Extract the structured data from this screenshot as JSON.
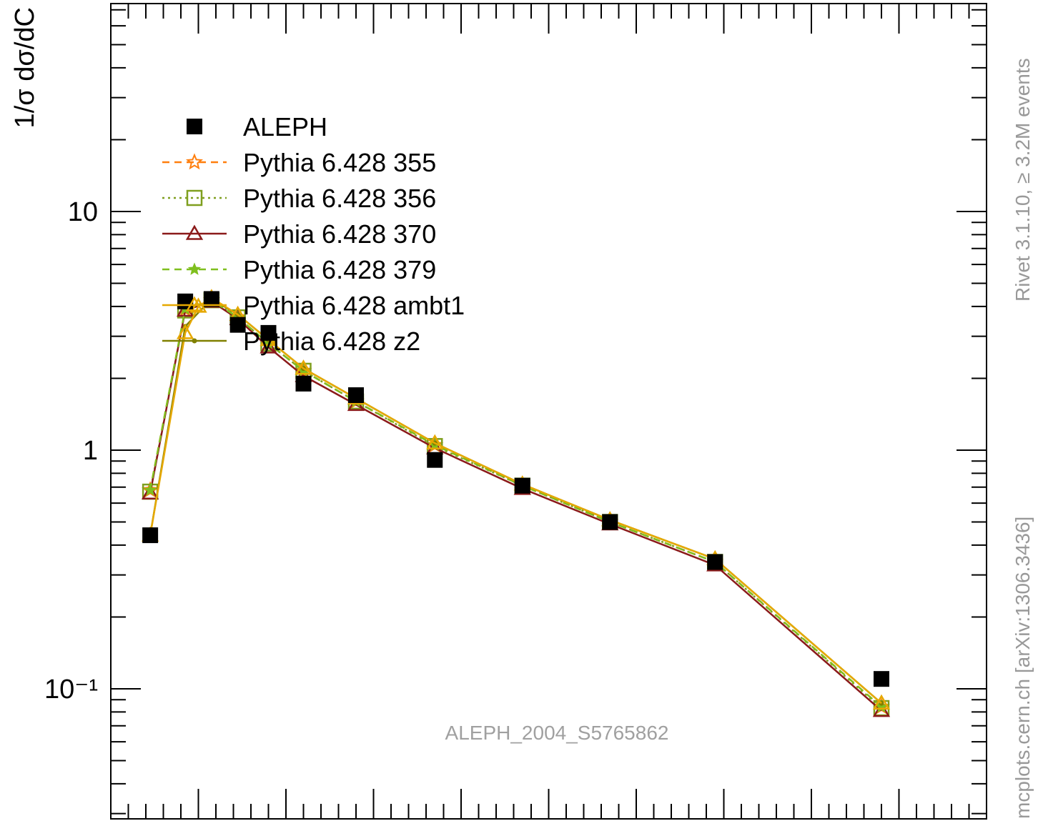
{
  "chart_data": {
    "type": "line",
    "title": "",
    "xlabel": "",
    "ylabel": "1/σ  dσ/dC",
    "yscale": "log",
    "ylim": [
      0.035,
      100
    ],
    "xlim": [
      0,
      1
    ],
    "grid": false,
    "legend_placement": "top-left",
    "ytick_labels": [
      "10⁻¹",
      "1",
      "10"
    ],
    "ytick_values": [
      0.1,
      1,
      10
    ],
    "watermark": "ALEPH_2004_S5765862",
    "side_text_top": "Rivet 3.1.10, ≥ 3.2M events",
    "side_text_bottom": "mcplots.cern.ch [arXiv:1306.3436]",
    "series": [
      {
        "name": "ALEPH",
        "color": "#000000",
        "marker": "square-filled",
        "line": "none",
        "x": [
          0.045,
          0.085,
          0.115,
          0.145,
          0.18,
          0.22,
          0.28,
          0.37,
          0.47,
          0.57,
          0.69,
          0.88
        ],
        "y": [
          0.44,
          4.2,
          4.3,
          3.35,
          3.1,
          1.9,
          1.7,
          0.91,
          0.71,
          0.5,
          0.34,
          0.11
        ]
      },
      {
        "name": "Pythia 6.428 355",
        "color": "#ff7f0e",
        "marker": "star-open",
        "line": "dashed",
        "x": [
          0.045,
          0.085,
          0.115,
          0.145,
          0.18,
          0.22,
          0.28,
          0.37,
          0.47,
          0.57,
          0.69,
          0.88
        ],
        "y": [
          0.68,
          3.9,
          4.25,
          3.6,
          2.8,
          2.15,
          1.6,
          1.05,
          0.71,
          0.5,
          0.34,
          0.084
        ]
      },
      {
        "name": "Pythia 6.428 356",
        "color": "#7f9f1f",
        "marker": "square-open",
        "line": "dotted",
        "x": [
          0.045,
          0.085,
          0.115,
          0.145,
          0.18,
          0.22,
          0.28,
          0.37,
          0.47,
          0.57,
          0.69,
          0.88
        ],
        "y": [
          0.67,
          3.85,
          4.25,
          3.6,
          2.8,
          2.15,
          1.6,
          1.04,
          0.71,
          0.5,
          0.34,
          0.083
        ]
      },
      {
        "name": "Pythia 6.428 370",
        "color": "#8b1a1a",
        "marker": "triangle-open",
        "line": "solid",
        "x": [
          0.045,
          0.085,
          0.115,
          0.145,
          0.18,
          0.22,
          0.28,
          0.37,
          0.47,
          0.57,
          0.69,
          0.88
        ],
        "y": [
          0.66,
          3.85,
          4.2,
          3.55,
          2.7,
          2.05,
          1.55,
          1.02,
          0.69,
          0.49,
          0.33,
          0.081
        ]
      },
      {
        "name": "Pythia 6.428 379",
        "color": "#7fbf1f",
        "marker": "star-small",
        "line": "dashed",
        "x": [
          0.045,
          0.085,
          0.115,
          0.145,
          0.18,
          0.22,
          0.28,
          0.37,
          0.47,
          0.57,
          0.69,
          0.88
        ],
        "y": [
          0.68,
          3.9,
          4.25,
          3.6,
          2.8,
          2.15,
          1.6,
          1.05,
          0.71,
          0.5,
          0.34,
          0.084
        ]
      },
      {
        "name": "Pythia 6.428 ambt1",
        "color": "#e6a800",
        "marker": "triangle-open",
        "line": "solid",
        "x": [
          0.045,
          0.085,
          0.1,
          0.115,
          0.145,
          0.18,
          0.22,
          0.28,
          0.37,
          0.47,
          0.57,
          0.69,
          0.88
        ],
        "y": [
          0.44,
          3.1,
          4.0,
          4.35,
          3.7,
          2.9,
          2.2,
          1.65,
          1.07,
          0.72,
          0.51,
          0.35,
          0.087
        ]
      },
      {
        "name": "Pythia 6.428 z2",
        "color": "#808000",
        "marker": "dot",
        "line": "solid",
        "x": [
          0.045,
          0.085,
          0.115,
          0.145,
          0.18,
          0.22,
          0.28,
          0.37,
          0.47,
          0.57,
          0.69,
          0.88
        ],
        "y": [
          0.44,
          3.3,
          4.3,
          3.7,
          2.9,
          2.2,
          1.65,
          1.07,
          0.72,
          0.51,
          0.35,
          0.087
        ]
      }
    ]
  }
}
